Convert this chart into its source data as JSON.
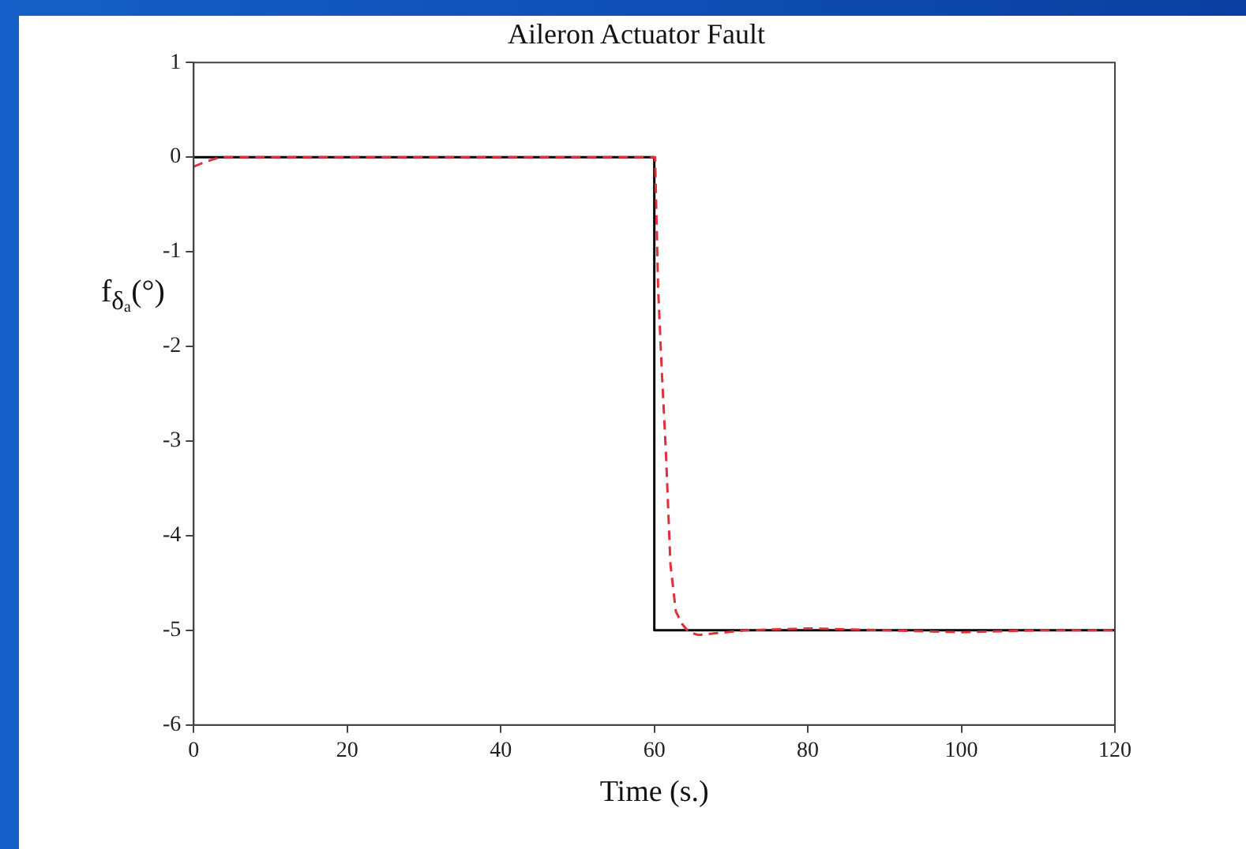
{
  "chart_data": {
    "type": "line",
    "title": "Aileron Actuator Fault",
    "xlabel": "Time (s.)",
    "ylabel": "f$_{δₐ}$(°)",
    "xlim": [
      0,
      120
    ],
    "xticks": [
      0,
      20,
      40,
      60,
      80,
      100,
      120
    ],
    "ylim": [
      -6,
      1
    ],
    "yticks": [
      -6,
      -5,
      -4,
      -3,
      -2,
      -1,
      0,
      1
    ],
    "marker": "none",
    "series": [
      {
        "color": "#000000",
        "line_style": "solid",
        "x": [
          0,
          60,
          60,
          120
        ],
        "values": [
          0,
          0,
          -5,
          -5
        ]
      },
      {
        "color": "#e0303a",
        "line_style": "dashed",
        "x": [
          0,
          1.5,
          3.5,
          60.1,
          60.5,
          61,
          61.5,
          62.1,
          62.8,
          63.6,
          64.5,
          65.8,
          68,
          72,
          80,
          90,
          100,
          110,
          120
        ],
        "values": [
          -0.1,
          -0.05,
          0,
          0,
          -1.4,
          -2.3,
          -3.1,
          -4.3,
          -4.8,
          -4.93,
          -5.02,
          -5.05,
          -5.03,
          -5,
          -4.98,
          -5,
          -5.02,
          -5,
          -5
        ]
      }
    ]
  }
}
